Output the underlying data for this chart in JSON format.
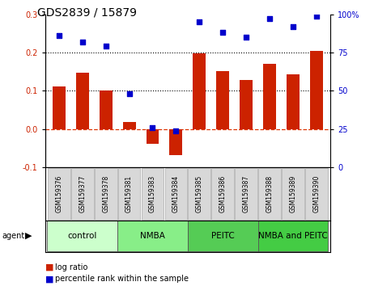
{
  "title": "GDS2839 / 15879",
  "samples": [
    "GSM159376",
    "GSM159377",
    "GSM159378",
    "GSM159381",
    "GSM159383",
    "GSM159384",
    "GSM159385",
    "GSM159386",
    "GSM159387",
    "GSM159388",
    "GSM159389",
    "GSM159390"
  ],
  "log_ratio": [
    0.112,
    0.148,
    0.101,
    0.018,
    -0.038,
    -0.068,
    0.198,
    0.152,
    0.128,
    0.17,
    0.143,
    0.205
  ],
  "percentile_rank": [
    86,
    82,
    79,
    48,
    26,
    24,
    95,
    88,
    85,
    97,
    92,
    99
  ],
  "groups": [
    {
      "label": "control",
      "start": 0,
      "end": 3,
      "color": "#ccffcc"
    },
    {
      "label": "NMBA",
      "start": 3,
      "end": 6,
      "color": "#66dd66"
    },
    {
      "label": "PEITC",
      "start": 6,
      "end": 9,
      "color": "#44cc44"
    },
    {
      "label": "NMBA and PEITC",
      "start": 9,
      "end": 12,
      "color": "#33bb33"
    }
  ],
  "bar_color": "#cc2200",
  "dot_color": "#0000cc",
  "ylim_left": [
    -0.1,
    0.3
  ],
  "ylim_right": [
    0,
    100
  ],
  "yticks_left": [
    -0.1,
    0.0,
    0.1,
    0.2,
    0.3
  ],
  "yticks_right": [
    0,
    25,
    50,
    75,
    100
  ],
  "hlines": [
    0.1,
    0.2
  ],
  "zero_line": 0.0,
  "title_fontsize": 10,
  "tick_fontsize": 7,
  "sample_fontsize": 5.5,
  "group_label_fontsize": 7.5,
  "legend_fontsize": 7,
  "agent_label": "agent",
  "legend_items": [
    "log ratio",
    "percentile rank within the sample"
  ]
}
